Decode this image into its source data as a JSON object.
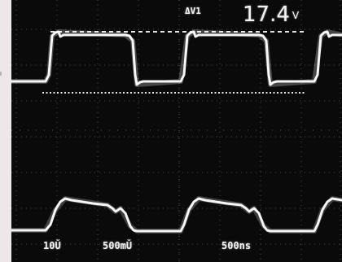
{
  "readout": {
    "label": "ΔV1",
    "value": "17.4",
    "unit": "V"
  },
  "scale": {
    "ch1": "10Ǔ",
    "ch2": "500mǓ",
    "time": "500ns"
  },
  "traces": {
    "color": "#f4f4f4",
    "grid_color": "#4a4a4a",
    "cursor_color": "#e6e6e6"
  }
}
